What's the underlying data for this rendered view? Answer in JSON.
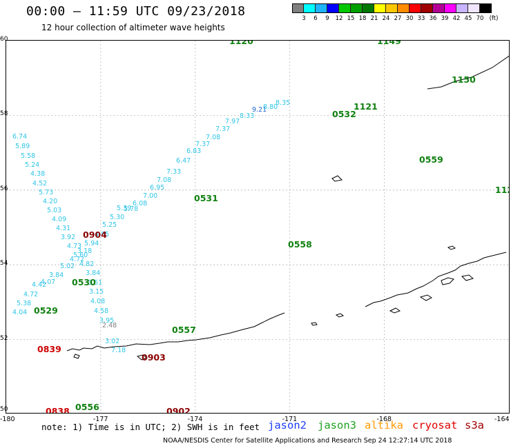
{
  "header": {
    "title": "00:00 – 11:59 UTC 09/23/2018",
    "subtitle": "12 hour collection of altimeter wave heights"
  },
  "color_scale": {
    "colors": [
      "#808080",
      "#00ffff",
      "#1eb4ff",
      "#0000ff",
      "#00c800",
      "#00a000",
      "#007800",
      "#ffff00",
      "#ffc800",
      "#ff8c00",
      "#ff0000",
      "#a00000",
      "#b40096",
      "#ff00ff",
      "#c8b4ff",
      "#f0e6ff",
      "#000000"
    ],
    "labels": [
      "3",
      "6",
      "9",
      "12",
      "15",
      "18",
      "21",
      "24",
      "27",
      "30",
      "33",
      "36",
      "39",
      "42",
      "45",
      "70"
    ],
    "unit": "(ft)"
  },
  "chart_data": {
    "type": "scatter",
    "xlim": [
      -180,
      -164
    ],
    "ylim": [
      50,
      60
    ],
    "xticks": [
      "-180",
      "-177",
      "-174",
      "-171",
      "-168",
      "-164"
    ],
    "yticks": [
      "60",
      "58",
      "56",
      "54",
      "52",
      "50"
    ],
    "grid": true,
    "observations": [
      {
        "lon": -178.6,
        "lat": 59.7,
        "value": "6.74",
        "color": "#2ec5e6"
      },
      {
        "lon": -178.4,
        "lat": 59.42,
        "value": "5.89",
        "color": "#2ec5e6"
      },
      {
        "lon": -178.2,
        "lat": 59.18,
        "value": "5.58",
        "color": "#2ec5e6"
      },
      {
        "lon": -178.0,
        "lat": 58.94,
        "value": "5.24",
        "color": "#2ec5e6"
      },
      {
        "lon": -177.85,
        "lat": 58.72,
        "value": "4.38",
        "color": "#2ec5e6"
      },
      {
        "lon": -177.75,
        "lat": 58.48,
        "value": "4.52",
        "color": "#2ec5e6"
      },
      {
        "lon": -177.6,
        "lat": 58.26,
        "value": "5.73",
        "color": "#2ec5e6"
      },
      {
        "lon": -177.45,
        "lat": 58.02,
        "value": "4.20",
        "color": "#2ec5e6"
      },
      {
        "lon": -177.35,
        "lat": 57.78,
        "value": "5.03",
        "color": "#2ec5e6"
      },
      {
        "lon": -177.25,
        "lat": 57.55,
        "value": "4.09",
        "color": "#2ec5e6"
      },
      {
        "lon": -177.1,
        "lat": 57.32,
        "value": "4.31",
        "color": "#2ec5e6"
      },
      {
        "lon": -177.0,
        "lat": 57.08,
        "value": "3.92",
        "color": "#2ec5e6"
      },
      {
        "lon": -176.9,
        "lat": 56.86,
        "value": "4.73",
        "color": "#2ec5e6"
      },
      {
        "lon": -176.8,
        "lat": 56.62,
        "value": "5.60",
        "color": "#2ec5e6"
      },
      {
        "lon": -176.7,
        "lat": 56.4,
        "value": "4.82",
        "color": "#2ec5e6"
      },
      {
        "lon": -176.55,
        "lat": 56.18,
        "value": "3.84",
        "color": "#2ec5e6"
      },
      {
        "lon": -176.3,
        "lat": 55.94,
        "value": "3.51",
        "color": "#2ec5e6"
      },
      {
        "lon": -176.0,
        "lat": 55.7,
        "value": "3.15",
        "color": "#2ec5e6"
      },
      {
        "lon": -175.85,
        "lat": 55.45,
        "value": "4.08",
        "color": "#2ec5e6"
      },
      {
        "lon": -175.7,
        "lat": 55.22,
        "value": "4.58",
        "color": "#2ec5e6"
      },
      {
        "lon": -175.55,
        "lat": 54.98,
        "value": "3.95",
        "color": "#2ec5e6"
      },
      {
        "lon": -175.4,
        "lat": 54.72,
        "value": "2.48",
        "color": "#808080"
      },
      {
        "lon": -175.3,
        "lat": 54.5,
        "value": "3.02",
        "color": "#2ec5e6"
      },
      {
        "lon": -175.2,
        "lat": 54.28,
        "value": "7.18",
        "color": "#2ec5e6"
      },
      {
        "lon": -178.7,
        "lat": 56.25,
        "value": "4.04",
        "color": "#2ec5e6"
      },
      {
        "lon": -178.4,
        "lat": 56.45,
        "value": "5.38",
        "color": "#2ec5e6"
      },
      {
        "lon": -178.1,
        "lat": 56.65,
        "value": "4.72",
        "color": "#2ec5e6"
      },
      {
        "lon": -177.85,
        "lat": 56.85,
        "value": "4.42",
        "color": "#2ec5e6"
      },
      {
        "lon": -177.6,
        "lat": 57.05,
        "value": "4.07",
        "color": "#2ec5e6"
      },
      {
        "lon": -177.35,
        "lat": 57.22,
        "value": "3.84",
        "color": "#2ec5e6"
      },
      {
        "lon": -177.05,
        "lat": 57.42,
        "value": "5.02",
        "color": "#2ec5e6"
      },
      {
        "lon": -176.75,
        "lat": 57.62,
        "value": "4.72",
        "color": "#2ec5e6"
      },
      {
        "lon": -176.45,
        "lat": 57.82,
        "value": "3.18",
        "color": "#2ec5e6"
      },
      {
        "lon": -176.15,
        "lat": 58.02,
        "value": "5.94",
        "color": "#2ec5e6"
      },
      {
        "lon": -175.85,
        "lat": 58.22,
        "value": "4.85",
        "color": "#2ec5e6"
      },
      {
        "lon": -175.55,
        "lat": 58.42,
        "value": "5.25",
        "color": "#2ec5e6"
      },
      {
        "lon": -175.25,
        "lat": 58.62,
        "value": "5.30",
        "color": "#2ec5e6"
      },
      {
        "lon": -174.95,
        "lat": 58.82,
        "value": "5.39",
        "color": "#2ec5e6"
      },
      {
        "lon": -174.65,
        "lat": 59.02,
        "value": "5.78",
        "color": "#2ec5e6"
      },
      {
        "lon": -174.35,
        "lat": 59.18,
        "value": "6.08",
        "color": "#2ec5e6"
      },
      {
        "lon": -174.05,
        "lat": 59.35,
        "value": "7.00",
        "color": "#2ec5e6"
      },
      {
        "lon": -173.75,
        "lat": 59.5,
        "value": "6.95",
        "color": "#2ec5e6"
      },
      {
        "lon": -173.45,
        "lat": 59.68,
        "value": "7.08",
        "color": "#2ec5e6"
      },
      {
        "lon": -173.15,
        "lat": 59.82,
        "value": "7.33",
        "color": "#2ec5e6"
      },
      {
        "lon": -172.85,
        "lat": 59.98,
        "value": "6.47",
        "color": "#2ec5e6"
      },
      {
        "lon": -172.55,
        "lat": 60.12,
        "value": "6.83",
        "color": "#2ec5e6"
      },
      {
        "lon": -172.25,
        "lat": 60.28,
        "value": "7.37",
        "color": "#2ec5e6"
      },
      {
        "lon": -171.95,
        "lat": 60.45,
        "value": "7.08",
        "color": "#2ec5e6"
      },
      {
        "lon": -171.65,
        "lat": 60.62,
        "value": "7.37",
        "color": "#2ec5e6"
      },
      {
        "lon": -171.35,
        "lat": 60.78,
        "value": "7.97",
        "color": "#2ec5e6"
      },
      {
        "lon": -171.05,
        "lat": 60.95,
        "value": "8.33",
        "color": "#2ec5e6"
      },
      {
        "lon": -170.75,
        "lat": 61.12,
        "value": "9.21",
        "color": "#1e64d2"
      },
      {
        "lon": -170.45,
        "lat": 61.28,
        "value": "8.80",
        "color": "#2ec5e6"
      },
      {
        "lon": -170.15,
        "lat": 61.42,
        "value": "8.35",
        "color": "#2ec5e6"
      }
    ]
  },
  "track_times": [
    {
      "label": "1120",
      "color": "#108010"
    },
    {
      "label": "1149",
      "color": "#108010"
    },
    {
      "label": "1150",
      "color": "#108010"
    },
    {
      "label": "1121",
      "color": "#108010"
    },
    {
      "label": "0532",
      "color": "#108010"
    },
    {
      "label": "0559",
      "color": "#108010"
    },
    {
      "label": "112",
      "color": "#108010"
    },
    {
      "label": "0531",
      "color": "#108010"
    },
    {
      "label": "0904",
      "color": "#8b0000"
    },
    {
      "label": "0558",
      "color": "#108010"
    },
    {
      "label": "0530",
      "color": "#108010"
    },
    {
      "label": "0529",
      "color": "#108010"
    },
    {
      "label": "0557",
      "color": "#108010"
    },
    {
      "label": "0839",
      "color": "#cc0000"
    },
    {
      "label": "0903",
      "color": "#8b0000"
    },
    {
      "label": "0556",
      "color": "#108010"
    },
    {
      "label": "0838",
      "color": "#cc0000"
    },
    {
      "label": "0902",
      "color": "#8b0000"
    }
  ],
  "notes": {
    "text": "note: 1) Time is in UTC; 2) SWH is in feet",
    "legend": [
      {
        "label": "jason2",
        "color": "#1e3cff"
      },
      {
        "label": "jason3",
        "color": "#20a020"
      },
      {
        "label": "altika",
        "color": "#ff9a00"
      },
      {
        "label": "cryosat",
        "color": "#e00000"
      },
      {
        "label": "s3a",
        "color": "#a00000"
      }
    ],
    "footer": "NOAA/NESDIS Center for Satellite Applications and Research    Sep 24 12:27:14 UTC 2018"
  }
}
